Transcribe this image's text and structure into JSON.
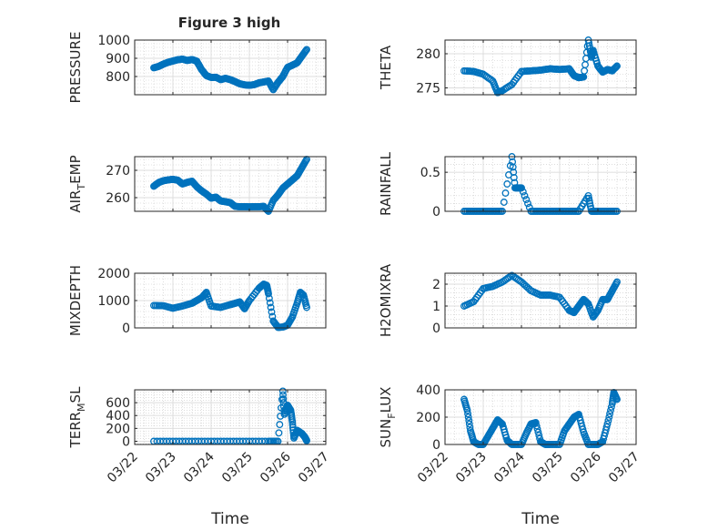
{
  "figure": {
    "title": "Figure 3 high",
    "marker_color": "#0072bd"
  },
  "chart_data": [
    {
      "type": "scatter",
      "title": "Figure 3 high",
      "xlabel": "",
      "ylabel": "PRESSURE",
      "grid": true,
      "xlim": [
        "03/22",
        "03/27"
      ],
      "ylim": [
        700,
        1000
      ],
      "x": [
        "03/22 12:00",
        "03/22 15:00",
        "03/22 18:00",
        "03/22 21:00",
        "03/23 00:00",
        "03/23 03:00",
        "03/23 06:00",
        "03/23 09:00",
        "03/23 12:00",
        "03/23 15:00",
        "03/23 18:00",
        "03/23 21:00",
        "03/24 00:00",
        "03/24 03:00",
        "03/24 06:00",
        "03/24 09:00",
        "03/24 12:00",
        "03/24 15:00",
        "03/24 18:00",
        "03/24 21:00",
        "03/25 00:00",
        "03/25 03:00",
        "03/25 06:00",
        "03/25 09:00",
        "03/25 12:00",
        "03/25 15:00",
        "03/25 18:00",
        "03/25 21:00",
        "03/26 00:00",
        "03/26 03:00",
        "03/26 06:00",
        "03/26 09:00",
        "03/26 12:00"
      ],
      "series": [
        {
          "values": [
            848,
            855,
            868,
            878,
            885,
            892,
            895,
            888,
            893,
            884,
            838,
            805,
            795,
            796,
            783,
            790,
            783,
            772,
            760,
            754,
            752,
            755,
            765,
            770,
            775,
            728,
            768,
            800,
            850,
            862,
            875,
            912,
            948
          ]
        }
      ]
    },
    {
      "type": "scatter",
      "title": "",
      "xlabel": "",
      "ylabel": "THETA",
      "grid": true,
      "xlim": [
        "03/22",
        "03/27"
      ],
      "ylim": [
        274,
        282
      ],
      "x": [
        "03/22 12:00",
        "03/22 18:00",
        "03/23 00:00",
        "03/23 06:00",
        "03/23 09:00",
        "03/23 12:00",
        "03/23 18:00",
        "03/24 00:00",
        "03/24 06:00",
        "03/24 12:00",
        "03/24 18:00",
        "03/25 00:00",
        "03/25 06:00",
        "03/25 09:00",
        "03/25 12:00",
        "03/25 15:00",
        "03/25 18:00",
        "03/25 20:00",
        "03/25 21:00",
        "03/26 00:00",
        "03/26 03:00",
        "03/26 06:00",
        "03/26 09:00",
        "03/26 12:00"
      ],
      "series": [
        {
          "values": [
            277.5,
            277.4,
            277.0,
            276.0,
            274.3,
            274.6,
            275.5,
            277.4,
            277.5,
            277.6,
            277.8,
            277.7,
            277.8,
            276.8,
            276.5,
            276.6,
            282.0,
            279.5,
            280.5,
            278.2,
            277.3,
            277.7,
            277.5,
            278.2
          ]
        }
      ]
    },
    {
      "type": "scatter",
      "title": "",
      "xlabel": "",
      "ylabel": "AIR_TEMP",
      "grid": true,
      "xlim": [
        "03/22",
        "03/27"
      ],
      "ylim": [
        255,
        275
      ],
      "x": [
        "03/22 12:00",
        "03/22 15:00",
        "03/22 18:00",
        "03/22 21:00",
        "03/23 00:00",
        "03/23 03:00",
        "03/23 06:00",
        "03/23 09:00",
        "03/23 12:00",
        "03/23 15:00",
        "03/23 18:00",
        "03/23 21:00",
        "03/24 00:00",
        "03/24 03:00",
        "03/24 06:00",
        "03/24 09:00",
        "03/24 12:00",
        "03/24 15:00",
        "03/24 18:00",
        "03/24 21:00",
        "03/25 00:00",
        "03/25 03:00",
        "03/25 06:00",
        "03/25 09:00",
        "03/25 12:00",
        "03/25 15:00",
        "03/25 18:00",
        "03/25 21:00",
        "03/26 00:00",
        "03/26 03:00",
        "03/26 06:00",
        "03/26 09:00",
        "03/26 12:00"
      ],
      "series": [
        {
          "values": [
            264.2,
            265.5,
            266.2,
            266.5,
            266.7,
            266.4,
            265.0,
            265.6,
            266.0,
            264.0,
            262.5,
            261.3,
            259.8,
            260.2,
            258.8,
            258.5,
            258.2,
            256.8,
            256.7,
            256.7,
            256.6,
            256.7,
            256.7,
            256.8,
            255.0,
            259.0,
            261.0,
            263.5,
            265.0,
            266.5,
            268.0,
            271.0,
            274.0
          ]
        }
      ]
    },
    {
      "type": "scatter",
      "title": "",
      "xlabel": "",
      "ylabel": "RAINFALL",
      "grid": true,
      "xlim": [
        "03/22",
        "03/27"
      ],
      "ylim": [
        0,
        0.7
      ],
      "x": [
        "03/22 12:00",
        "03/22 18:00",
        "03/23 00:00",
        "03/23 06:00",
        "03/23 12:00",
        "03/23 18:00",
        "03/23 20:00",
        "03/23 22:00",
        "03/24 00:00",
        "03/24 06:00",
        "03/24 12:00",
        "03/24 18:00",
        "03/25 00:00",
        "03/25 06:00",
        "03/25 12:00",
        "03/25 18:00",
        "03/25 20:00",
        "03/26 00:00",
        "03/26 06:00",
        "03/26 12:00"
      ],
      "series": [
        {
          "values": [
            0,
            0,
            0,
            0,
            0,
            0.7,
            0.3,
            0.3,
            0.3,
            0,
            0,
            0,
            0,
            0,
            0,
            0.2,
            0,
            0,
            0,
            0
          ]
        }
      ]
    },
    {
      "type": "scatter",
      "title": "",
      "xlabel": "",
      "ylabel": "MIXDEPTH",
      "grid": true,
      "xlim": [
        "03/22",
        "03/27"
      ],
      "ylim": [
        0,
        2000
      ],
      "x": [
        "03/22 12:00",
        "03/22 18:00",
        "03/23 00:00",
        "03/23 06:00",
        "03/23 12:00",
        "03/23 15:00",
        "03/23 18:00",
        "03/23 21:00",
        "03/24 00:00",
        "03/24 06:00",
        "03/24 12:00",
        "03/24 15:00",
        "03/24 18:00",
        "03/24 21:00",
        "03/25 00:00",
        "03/25 06:00",
        "03/25 09:00",
        "03/25 11:00",
        "03/25 12:00",
        "03/25 15:00",
        "03/25 18:00",
        "03/25 21:00",
        "03/26 00:00",
        "03/26 03:00",
        "03/26 06:00",
        "03/26 08:00",
        "03/26 10:00",
        "03/26 12:00"
      ],
      "series": [
        {
          "values": [
            820,
            810,
            720,
            800,
            900,
            1000,
            1100,
            1300,
            800,
            750,
            850,
            900,
            950,
            700,
            1000,
            1450,
            1600,
            1550,
            1250,
            250,
            20,
            30,
            100,
            400,
            900,
            1300,
            1200,
            750
          ]
        }
      ]
    },
    {
      "type": "scatter",
      "title": "",
      "xlabel": "",
      "ylabel": "H2OMIXRA",
      "grid": true,
      "xlim": [
        "03/22",
        "03/27"
      ],
      "ylim": [
        0,
        2.5
      ],
      "x": [
        "03/22 12:00",
        "03/22 18:00",
        "03/23 00:00",
        "03/23 06:00",
        "03/23 12:00",
        "03/23 18:00",
        "03/24 00:00",
        "03/24 06:00",
        "03/24 12:00",
        "03/24 18:00",
        "03/25 00:00",
        "03/25 06:00",
        "03/25 09:00",
        "03/25 12:00",
        "03/25 15:00",
        "03/25 18:00",
        "03/25 21:00",
        "03/26 00:00",
        "03/26 03:00",
        "03/26 06:00",
        "03/26 09:00",
        "03/26 12:00"
      ],
      "series": [
        {
          "values": [
            1.0,
            1.2,
            1.8,
            1.9,
            2.1,
            2.4,
            2.1,
            1.7,
            1.5,
            1.5,
            1.4,
            0.8,
            0.7,
            1.0,
            1.3,
            1.1,
            0.5,
            0.8,
            1.3,
            1.3,
            1.7,
            2.1
          ]
        }
      ]
    },
    {
      "type": "scatter",
      "title": "",
      "xlabel": "Time",
      "ylabel": "TERR_MSL",
      "grid": true,
      "xlim": [
        "03/22",
        "03/27"
      ],
      "ylim": [
        -50,
        800
      ],
      "x": [
        "03/22 12:00",
        "03/23 00:00",
        "03/23 12:00",
        "03/24 00:00",
        "03/24 12:00",
        "03/25 00:00",
        "03/25 12:00",
        "03/25 18:00",
        "03/25 21:00",
        "03/25 22:00",
        "03/26 00:00",
        "03/26 02:00",
        "03/26 03:00",
        "03/26 04:00",
        "03/26 06:00",
        "03/26 09:00",
        "03/26 11:00",
        "03/26 12:00"
      ],
      "series": [
        {
          "values": [
            0,
            0,
            0,
            0,
            0,
            0,
            0,
            0,
            780,
            420,
            560,
            480,
            300,
            50,
            170,
            120,
            60,
            10
          ]
        }
      ]
    },
    {
      "type": "scatter",
      "title": "",
      "xlabel": "Time",
      "ylabel": "SUN_FLUX",
      "grid": true,
      "xlim": [
        "03/22",
        "03/27"
      ],
      "ylim": [
        0,
        400
      ],
      "x": [
        "03/22 12:00",
        "03/22 14:00",
        "03/22 16:00",
        "03/22 18:00",
        "03/22 21:00",
        "03/23 00:00",
        "03/23 03:00",
        "03/23 06:00",
        "03/23 09:00",
        "03/23 12:00",
        "03/23 15:00",
        "03/23 18:00",
        "03/24 00:00",
        "03/24 03:00",
        "03/24 06:00",
        "03/24 09:00",
        "03/24 12:00",
        "03/24 15:00",
        "03/24 18:00",
        "03/25 00:00",
        "03/25 03:00",
        "03/25 06:00",
        "03/25 09:00",
        "03/25 12:00",
        "03/25 15:00",
        "03/25 18:00",
        "03/26 00:00",
        "03/26 03:00",
        "03/26 06:00",
        "03/26 09:00",
        "03/26 10:00",
        "03/26 12:00"
      ],
      "series": [
        {
          "values": [
            330,
            250,
            100,
            20,
            0,
            0,
            60,
            120,
            180,
            150,
            30,
            0,
            0,
            80,
            150,
            160,
            20,
            0,
            0,
            0,
            100,
            150,
            200,
            220,
            90,
            0,
            0,
            20,
            150,
            300,
            380,
            330
          ]
        }
      ]
    }
  ],
  "x_tick_labels": [
    "03/22",
    "03/23",
    "03/24",
    "03/25",
    "03/26",
    "03/27"
  ],
  "tick_labels": {
    "p0": [
      "800",
      "900",
      "1000"
    ],
    "p1": [
      "275",
      "280"
    ],
    "p2": [
      "260",
      "270"
    ],
    "p3": [
      "0",
      "0.5"
    ],
    "p4": [
      "0",
      "1000",
      "2000"
    ],
    "p5": [
      "0",
      "1",
      "2"
    ],
    "p6": [
      "0",
      "200",
      "400",
      "600"
    ],
    "p7": [
      "0",
      "200",
      "400"
    ]
  },
  "ylabels": {
    "p0": "PRESSURE",
    "p1": "THETA",
    "p2": "AIR_TEMP",
    "p3": "RAINFALL",
    "p4": "MIXDEPTH",
    "p5": "H2OMIXRA",
    "p6": "TERR_MSL",
    "p7": "SUN_FLUX"
  }
}
